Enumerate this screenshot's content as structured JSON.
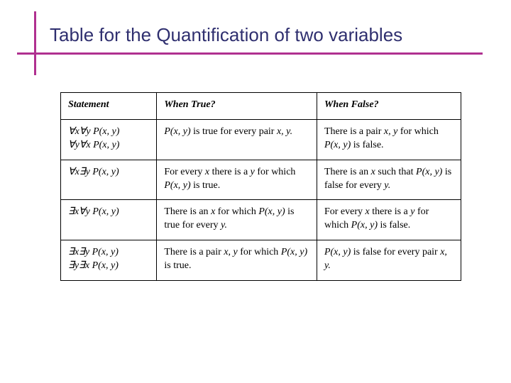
{
  "colors": {
    "title_text": "#2f2f6f",
    "rule": "#b03090",
    "border": "#000000",
    "background": "#ffffff"
  },
  "title": "Table for the Quantification of two variables",
  "table": {
    "headers": {
      "statement": "Statement",
      "when_true": "When True?",
      "when_false": "When False?"
    },
    "rows": [
      {
        "stmt1": "∀x∀y P(x, y)",
        "stmt2": "∀y∀x P(x, y)",
        "true_a": "P(x, y)",
        "true_b": " is true for every pair ",
        "true_c": "x, y.",
        "false_a": "There is a pair ",
        "false_b": "x, y",
        "false_c": " for which ",
        "false_d": "P(x, y)",
        "false_e": " is false."
      },
      {
        "stmt1": "∀x∃y P(x, y)",
        "true_a": "For every ",
        "true_b": "x",
        "true_c": " there is a ",
        "true_d": "y",
        "true_e": " for which ",
        "true_f": "P(x, y)",
        "true_g": " is true.",
        "false_a": "There is an ",
        "false_b": "x",
        "false_c": " such that ",
        "false_d": "P(x, y)",
        "false_e": " is false for every ",
        "false_f": "y."
      },
      {
        "stmt1": "∃x∀y P(x, y)",
        "true_a": "There is an ",
        "true_b": "x",
        "true_c": " for which ",
        "true_d": "P(x, y)",
        "true_e": " is true for every ",
        "true_f": "y.",
        "false_a": "For every ",
        "false_b": "x",
        "false_c": " there is a ",
        "false_d": "y",
        "false_e": " for which ",
        "false_f": "P(x, y)",
        "false_g": " is false."
      },
      {
        "stmt1": "∃x∃y P(x, y)",
        "stmt2": "∃y∃x P(x, y)",
        "true_a": "There is a pair ",
        "true_b": "x, y",
        "true_c": " for which ",
        "true_d": "P(x, y)",
        "true_e": " is true.",
        "false_a": "P(x, y)",
        "false_b": " is false for every pair ",
        "false_c": "x, y."
      }
    ]
  }
}
